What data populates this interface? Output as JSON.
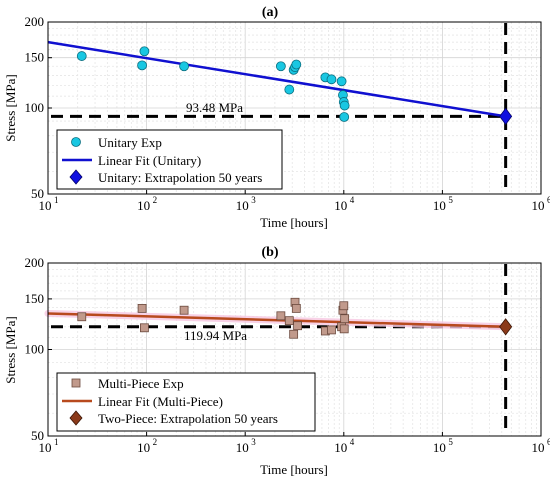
{
  "chart_data": [
    {
      "panel_title": "(a)",
      "type": "scatter",
      "xlabel": "Time [hours]",
      "ylabel": "Stress [MPa]",
      "xscale": "log",
      "yscale": "log",
      "xlim": [
        10,
        1000000
      ],
      "ylim": [
        50,
        200
      ],
      "xticks": [
        10,
        100,
        1000,
        10000,
        100000,
        1000000
      ],
      "yticks": [
        50,
        100,
        150,
        200
      ],
      "xtick_labels": [
        {
          "base": "10",
          "exp": "1"
        },
        {
          "base": "10",
          "exp": "2"
        },
        {
          "base": "10",
          "exp": "3"
        },
        {
          "base": "10",
          "exp": "4"
        },
        {
          "base": "10",
          "exp": "5"
        },
        {
          "base": "10",
          "exp": "6"
        }
      ],
      "ytick_labels": [
        "50",
        "100",
        "150",
        "200"
      ],
      "grid": true,
      "series": [
        {
          "name": "Unitary Exp",
          "kind": "markers",
          "marker": "circle",
          "color": "#19C7E2",
          "points": [
            [
              22,
              152
            ],
            [
              90,
              141
            ],
            [
              95,
              158
            ],
            [
              240,
              140
            ],
            [
              2300,
              140
            ],
            [
              2800,
              116
            ],
            [
              3100,
              136
            ],
            [
              3200,
              139
            ],
            [
              3300,
              142
            ],
            [
              6500,
              128
            ],
            [
              7500,
              126
            ],
            [
              9500,
              124
            ],
            [
              9800,
              111
            ],
            [
              10000,
              105
            ],
            [
              10200,
              102
            ],
            [
              10100,
              93
            ]
          ]
        },
        {
          "name": "Linear Fit (Unitary)",
          "kind": "line",
          "color": "#1010D0",
          "points": [
            [
              10,
              170
            ],
            [
              438000,
              93.48
            ]
          ]
        },
        {
          "name": "Unitary: Extrapolation 50 years",
          "kind": "marker",
          "marker": "diamond",
          "color": "#1010E0",
          "points": [
            [
              438000,
              93.48
            ]
          ]
        }
      ],
      "reference_lines": {
        "stress": 93.48,
        "time": 438000
      },
      "annotation": "93.48 MPa",
      "legend_position": "bottom-left"
    },
    {
      "panel_title": "(b)",
      "type": "scatter",
      "xlabel": "Time [hours]",
      "ylabel": "Stress [MPa]",
      "xscale": "log",
      "yscale": "log",
      "xlim": [
        10,
        1000000
      ],
      "ylim": [
        50,
        200
      ],
      "xticks": [
        10,
        100,
        1000,
        10000,
        100000,
        1000000
      ],
      "yticks": [
        50,
        100,
        150,
        200
      ],
      "xtick_labels": [
        {
          "base": "10",
          "exp": "1"
        },
        {
          "base": "10",
          "exp": "2"
        },
        {
          "base": "10",
          "exp": "3"
        },
        {
          "base": "10",
          "exp": "4"
        },
        {
          "base": "10",
          "exp": "5"
        },
        {
          "base": "10",
          "exp": "6"
        }
      ],
      "ytick_labels": [
        "50",
        "100",
        "150",
        "200"
      ],
      "grid": true,
      "series": [
        {
          "name": "Multi-Piece Exp",
          "kind": "markers",
          "marker": "square",
          "color": "#C19A8C",
          "points": [
            [
              22,
              130
            ],
            [
              90,
              139
            ],
            [
              95,
              119
            ],
            [
              240,
              137
            ],
            [
              2300,
              131
            ],
            [
              2800,
              126
            ],
            [
              3100,
              113
            ],
            [
              3200,
              146
            ],
            [
              3300,
              139
            ],
            [
              3400,
              121
            ],
            [
              6500,
              116
            ],
            [
              7500,
              117
            ],
            [
              9500,
              120
            ],
            [
              9800,
              137
            ],
            [
              10000,
              142
            ],
            [
              10200,
              128
            ],
            [
              10100,
              118
            ]
          ]
        },
        {
          "name": "Linear Fit (Multi-Piece)",
          "kind": "line",
          "color": "#B84A1E",
          "points": [
            [
              10,
              133.5
            ],
            [
              438000,
              119.94
            ]
          ]
        },
        {
          "name": "Two-Piece: Extrapolation 50 years",
          "kind": "marker",
          "marker": "diamond",
          "color": "#8B3A1A",
          "points": [
            [
              438000,
              119.94
            ]
          ]
        }
      ],
      "reference_lines": {
        "stress": 119.94,
        "time": 438000
      },
      "annotation": "119.94 MPa",
      "legend_position": "bottom-left"
    }
  ]
}
